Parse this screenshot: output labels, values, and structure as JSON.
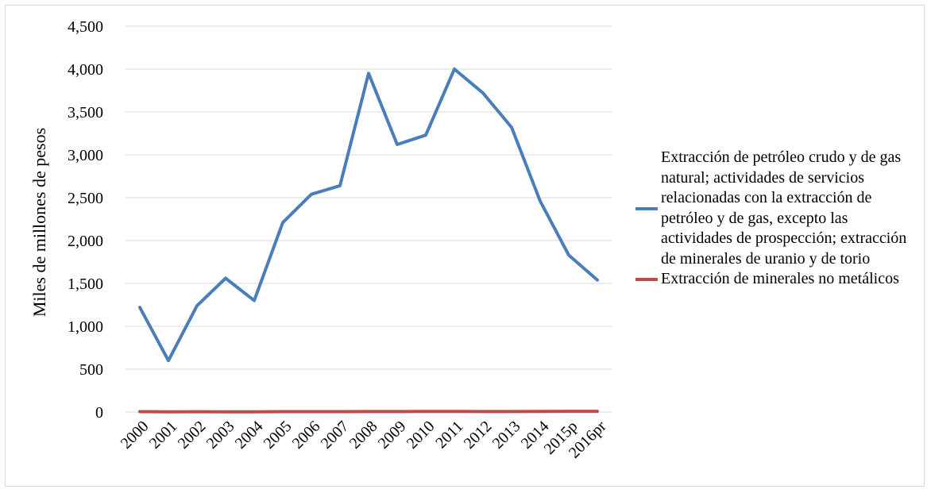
{
  "chart_data": {
    "type": "line",
    "ylabel": "Miles de millones de pesos",
    "ylim": [
      0,
      4500
    ],
    "yticks": [
      0,
      500,
      1000,
      1500,
      2000,
      2500,
      3000,
      3500,
      4000,
      4500
    ],
    "ytick_labels": [
      "0",
      "500",
      "1,000",
      "1,500",
      "2,000",
      "2,500",
      "3,000",
      "3,500",
      "4,000",
      "4,500"
    ],
    "categories": [
      "2000",
      "2001",
      "2002",
      "2003",
      "2004",
      "2005",
      "2006",
      "2007",
      "2008",
      "2009",
      "2010",
      "2011",
      "2012",
      "2013",
      "2014",
      "2015p",
      "2016pr"
    ],
    "grid": "horizontal",
    "legend_position": "right",
    "series": [
      {
        "name": "Extracción de petróleo crudo y de gas natural; actividades de servicios relacionadas con la extracción de petróleo y de gas, excepto las actividades de prospección; extracción de minerales de uranio y de torio",
        "color": "#4a7ebb",
        "values": [
          1220,
          600,
          1240,
          1560,
          1300,
          2210,
          2540,
          2640,
          3950,
          3120,
          3230,
          4000,
          3720,
          3320,
          2460,
          1830,
          1540
        ]
      },
      {
        "name": "Extracción de minerales no metálicos",
        "color": "#be4b48",
        "values": [
          5,
          2,
          4,
          3,
          3,
          5,
          5,
          5,
          6,
          6,
          7,
          7,
          6,
          6,
          7,
          8,
          8
        ]
      }
    ]
  }
}
